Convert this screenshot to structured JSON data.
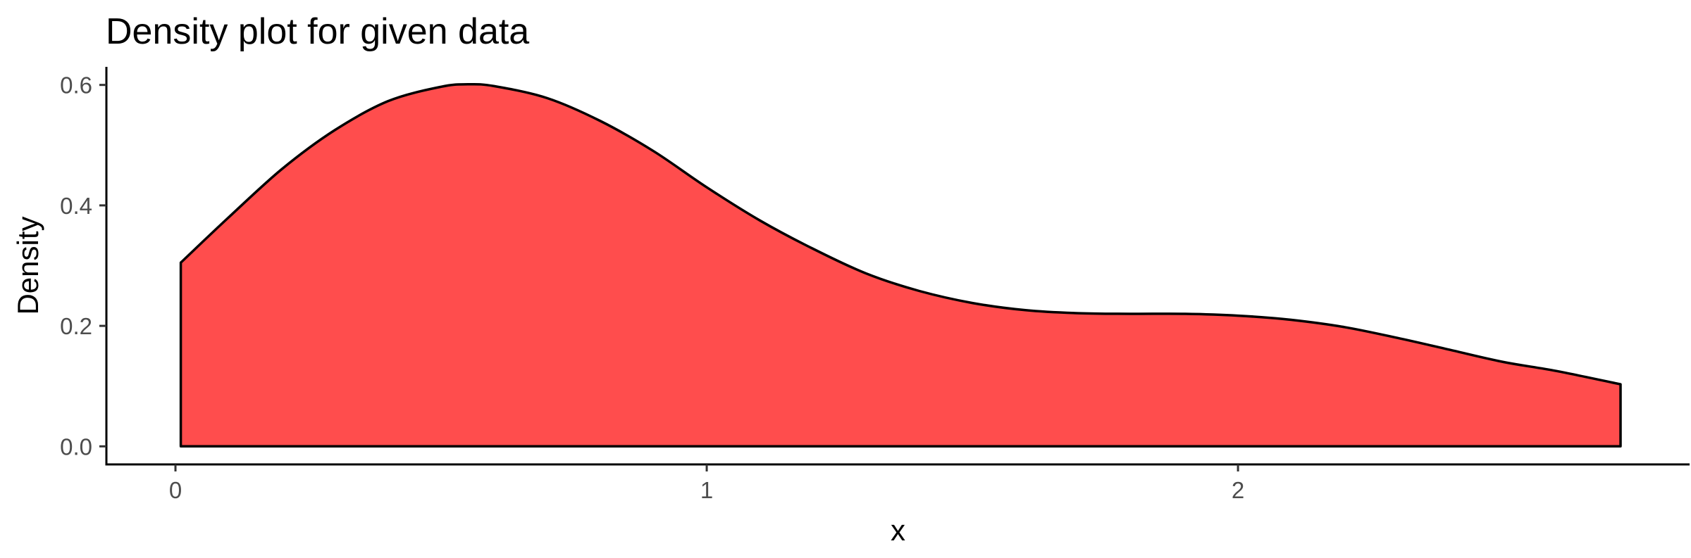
{
  "chart_data": {
    "type": "area",
    "title": "Density plot for given data",
    "xlabel": "x",
    "ylabel": "Density",
    "xlim": [
      -0.13,
      2.85
    ],
    "ylim": [
      -0.03,
      0.63
    ],
    "x_ticks": [
      0,
      1,
      2
    ],
    "x_tick_labels": [
      "0",
      "1",
      "2"
    ],
    "y_ticks": [
      0.0,
      0.2,
      0.4,
      0.6
    ],
    "y_tick_labels": [
      "0.0",
      "0.2",
      "0.4",
      "0.6"
    ],
    "grid": false,
    "legend": "none",
    "series": [
      {
        "x": [
          0.01,
          0.1,
          0.2,
          0.3,
          0.4,
          0.5,
          0.55,
          0.6,
          0.7,
          0.8,
          0.9,
          1.0,
          1.1,
          1.2,
          1.3,
          1.4,
          1.5,
          1.6,
          1.7,
          1.8,
          1.9,
          2.0,
          2.1,
          2.2,
          2.3,
          2.4,
          2.5,
          2.6,
          2.72
        ],
        "y": [
          0.305,
          0.38,
          0.46,
          0.525,
          0.573,
          0.597,
          0.601,
          0.598,
          0.578,
          0.54,
          0.49,
          0.43,
          0.375,
          0.328,
          0.287,
          0.258,
          0.238,
          0.226,
          0.221,
          0.22,
          0.22,
          0.217,
          0.21,
          0.198,
          0.18,
          0.16,
          0.14,
          0.125,
          0.103
        ],
        "fill_color": "#ff4d4d",
        "line_color": "#000000"
      }
    ]
  }
}
